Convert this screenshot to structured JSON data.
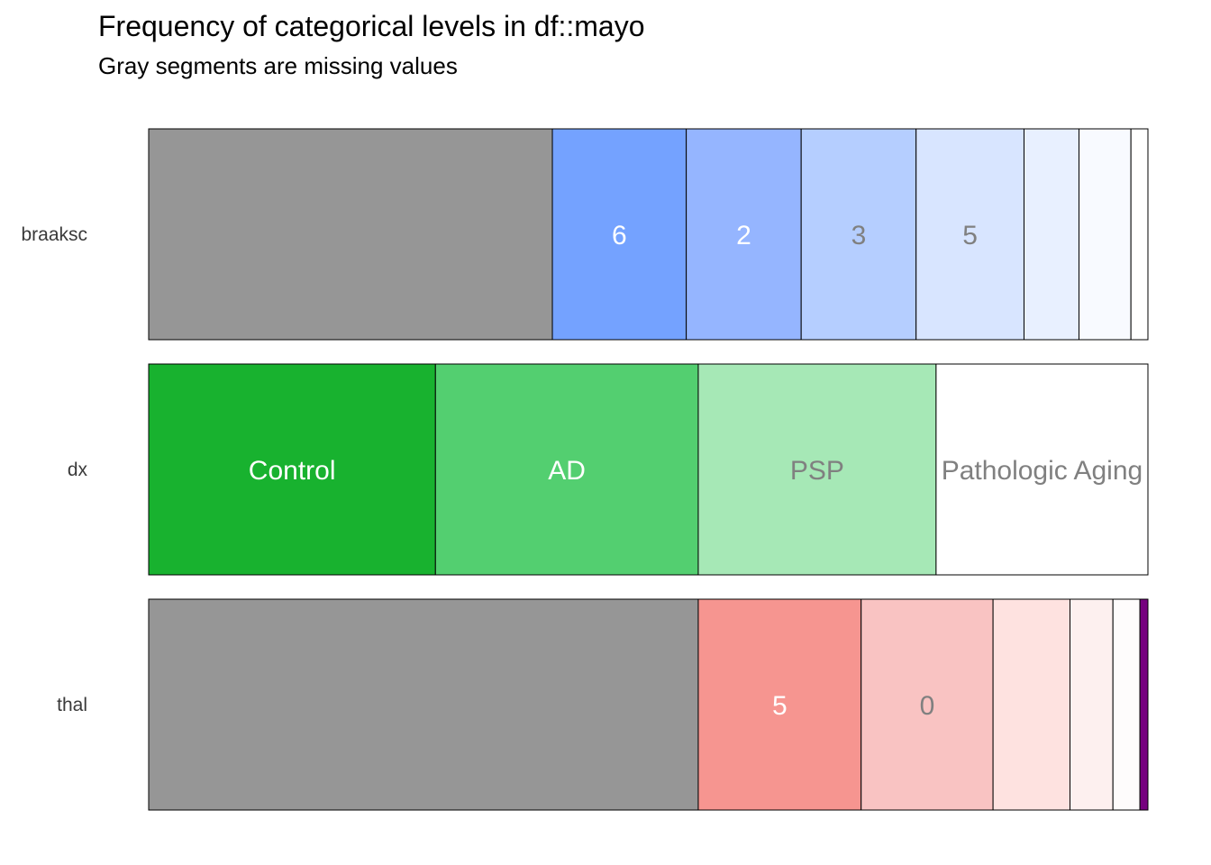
{
  "chart_data": {
    "type": "bar",
    "orientation": "horizontal",
    "stacked": true,
    "normalized": true,
    "title": "Frequency of categorical levels in df::mayo",
    "subtitle": "Gray segments are missing values",
    "grid": false,
    "legend": "none",
    "missing_color": "#969696",
    "rows": [
      {
        "name": "braaksc",
        "segments": [
          {
            "level": "",
            "missing": true,
            "fraction": 0.404,
            "color": "#969696"
          },
          {
            "level": "6",
            "fraction": 0.134,
            "color": "#74A2FF"
          },
          {
            "level": "2",
            "fraction": 0.115,
            "color": "#95B5FF"
          },
          {
            "level": "3",
            "fraction": 0.115,
            "color": "#B5CEFF"
          },
          {
            "level": "5",
            "fraction": 0.108,
            "color": "#D8E5FF"
          },
          {
            "level": "",
            "fraction": 0.055,
            "color": "#E8F0FF"
          },
          {
            "level": "",
            "fraction": 0.052,
            "color": "#F8FAFF"
          },
          {
            "level": "",
            "fraction": 0.017,
            "color": "#FFFFFF"
          }
        ]
      },
      {
        "name": "dx",
        "segments": [
          {
            "level": "Control",
            "fraction": 0.287,
            "color": "#18B22F"
          },
          {
            "level": "AD",
            "fraction": 0.263,
            "color": "#53CF70"
          },
          {
            "level": "PSP",
            "fraction": 0.238,
            "color": "#A6E8B6"
          },
          {
            "level": "Pathologic Aging",
            "fraction": 0.212,
            "color": "#FFFFFF"
          }
        ]
      },
      {
        "name": "thal",
        "segments": [
          {
            "level": "",
            "missing": true,
            "fraction": 0.55,
            "color": "#969696"
          },
          {
            "level": "5",
            "fraction": 0.163,
            "color": "#F69590"
          },
          {
            "level": "0",
            "fraction": 0.132,
            "color": "#F9C3C2"
          },
          {
            "level": "",
            "fraction": 0.077,
            "color": "#FEE2E0"
          },
          {
            "level": "",
            "fraction": 0.043,
            "color": "#FDF0EF"
          },
          {
            "level": "",
            "fraction": 0.027,
            "color": "#FEFCFC"
          },
          {
            "level": "",
            "fraction": 0.008,
            "color": "#76007F"
          }
        ]
      }
    ]
  }
}
